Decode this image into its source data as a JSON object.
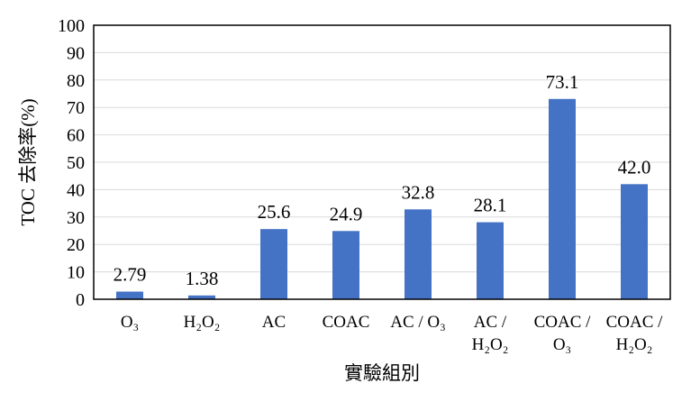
{
  "chart_data": {
    "type": "bar",
    "categories": [
      [
        "O₃"
      ],
      [
        "H₂O₂"
      ],
      [
        "AC"
      ],
      [
        "COAC"
      ],
      [
        "AC / O₃"
      ],
      [
        "AC /",
        "H₂O₂"
      ],
      [
        "COAC /",
        "O₃"
      ],
      [
        "COAC /",
        "H₂O₂"
      ]
    ],
    "series": [
      {
        "values": [
          2.79,
          1.38,
          25.6,
          24.9,
          32.8,
          28.1,
          73.1,
          42.0
        ],
        "labels": [
          "2.79",
          "1.38",
          "25.6",
          "24.9",
          "32.8",
          "28.1",
          "73.1",
          "42.0"
        ],
        "color": "#4472C4"
      }
    ],
    "title": "",
    "xlabel": "實驗組別",
    "ylabel": "TOC 去除率(%)",
    "ylim": [
      0,
      100
    ],
    "yticks": [
      0,
      10,
      20,
      30,
      40,
      50,
      60,
      70,
      80,
      90,
      100
    ],
    "grid": true,
    "gridColor": "#D9D9D9",
    "legend": "none"
  }
}
